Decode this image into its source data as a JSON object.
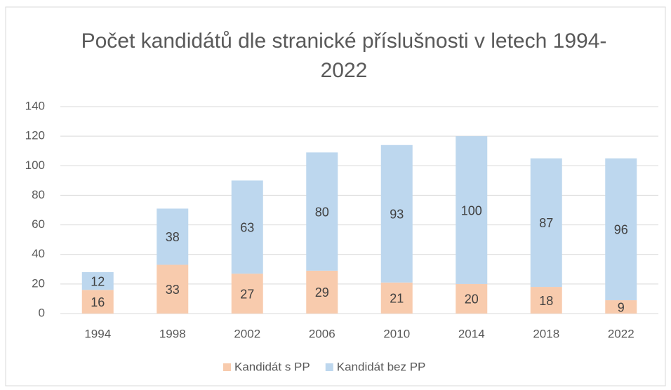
{
  "chart_data": {
    "type": "bar",
    "stacked": true,
    "title": "Počet kandidátů dle stranické příslušnosti v letech 1994-2022",
    "categories": [
      "1994",
      "1998",
      "2002",
      "2006",
      "2010",
      "2014",
      "2018",
      "2022"
    ],
    "series": [
      {
        "name": "Kandidát s PP",
        "color": "#f8cbad",
        "values": [
          16,
          33,
          27,
          29,
          21,
          20,
          18,
          9
        ]
      },
      {
        "name": "Kandidát bez PP",
        "color": "#bdd7ee",
        "values": [
          12,
          38,
          63,
          80,
          93,
          100,
          87,
          96
        ]
      }
    ],
    "ylim": [
      0,
      140
    ],
    "yticks": [
      0,
      20,
      40,
      60,
      80,
      100,
      120,
      140
    ],
    "grid": true,
    "legend": "bottom"
  }
}
